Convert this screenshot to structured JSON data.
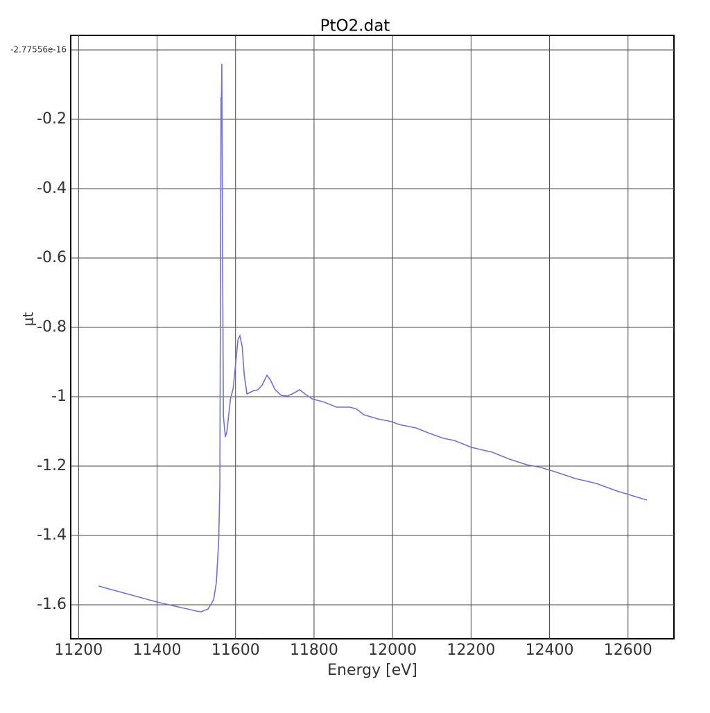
{
  "chart_data": {
    "type": "line",
    "title": "PtO2.dat",
    "x_label": "Energy [eV]",
    "y_label": "μt",
    "color": "#6f6fdf",
    "grid": true,
    "xlim": [
      11180,
      12717
    ],
    "ylim": [
      -1.698,
      0.042
    ],
    "xticks": [
      11200,
      11400,
      11600,
      11800,
      12000,
      12200,
      12400,
      12600
    ],
    "yticks": [
      -1.6,
      -1.4,
      -1.2,
      -1,
      -0.8,
      -0.6,
      -0.4,
      -0.2,
      -2.77556e-16
    ],
    "x": [
      11251,
      11400,
      11500,
      11512,
      11530,
      11544,
      11551,
      11557,
      11560,
      11563,
      11564,
      11565,
      11567,
      11569,
      11574,
      11578,
      11587,
      11594,
      11601,
      11606,
      11611,
      11617,
      11622,
      11629,
      11636,
      11647,
      11657,
      11668,
      11680,
      11689,
      11701,
      11716,
      11733,
      11751,
      11763,
      11777,
      11795,
      11827,
      11857,
      11892,
      11909,
      11927,
      11963,
      11998,
      12016,
      12060,
      12095,
      12130,
      12157,
      12201,
      12254,
      12298,
      12342,
      12378,
      12413,
      12466,
      12519,
      12572,
      12648
    ],
    "values": [
      -1.546,
      -1.592,
      -1.618,
      -1.62,
      -1.612,
      -1.586,
      -1.536,
      -1.416,
      -1.256,
      -0.136,
      -0.14,
      -0.04,
      -0.6,
      -1.056,
      -1.116,
      -1.1,
      -1.006,
      -0.976,
      -0.896,
      -0.836,
      -0.824,
      -0.856,
      -0.936,
      -0.992,
      -0.988,
      -0.982,
      -0.98,
      -0.966,
      -0.938,
      -0.952,
      -0.98,
      -0.996,
      -0.998,
      -0.988,
      -0.98,
      -0.992,
      -1.006,
      -1.016,
      -1.03,
      -1.03,
      -1.036,
      -1.052,
      -1.064,
      -1.072,
      -1.08,
      -1.09,
      -1.106,
      -1.12,
      -1.126,
      -1.146,
      -1.16,
      -1.18,
      -1.196,
      -1.204,
      -1.216,
      -1.236,
      -1.25,
      -1.272,
      -1.298
    ]
  }
}
